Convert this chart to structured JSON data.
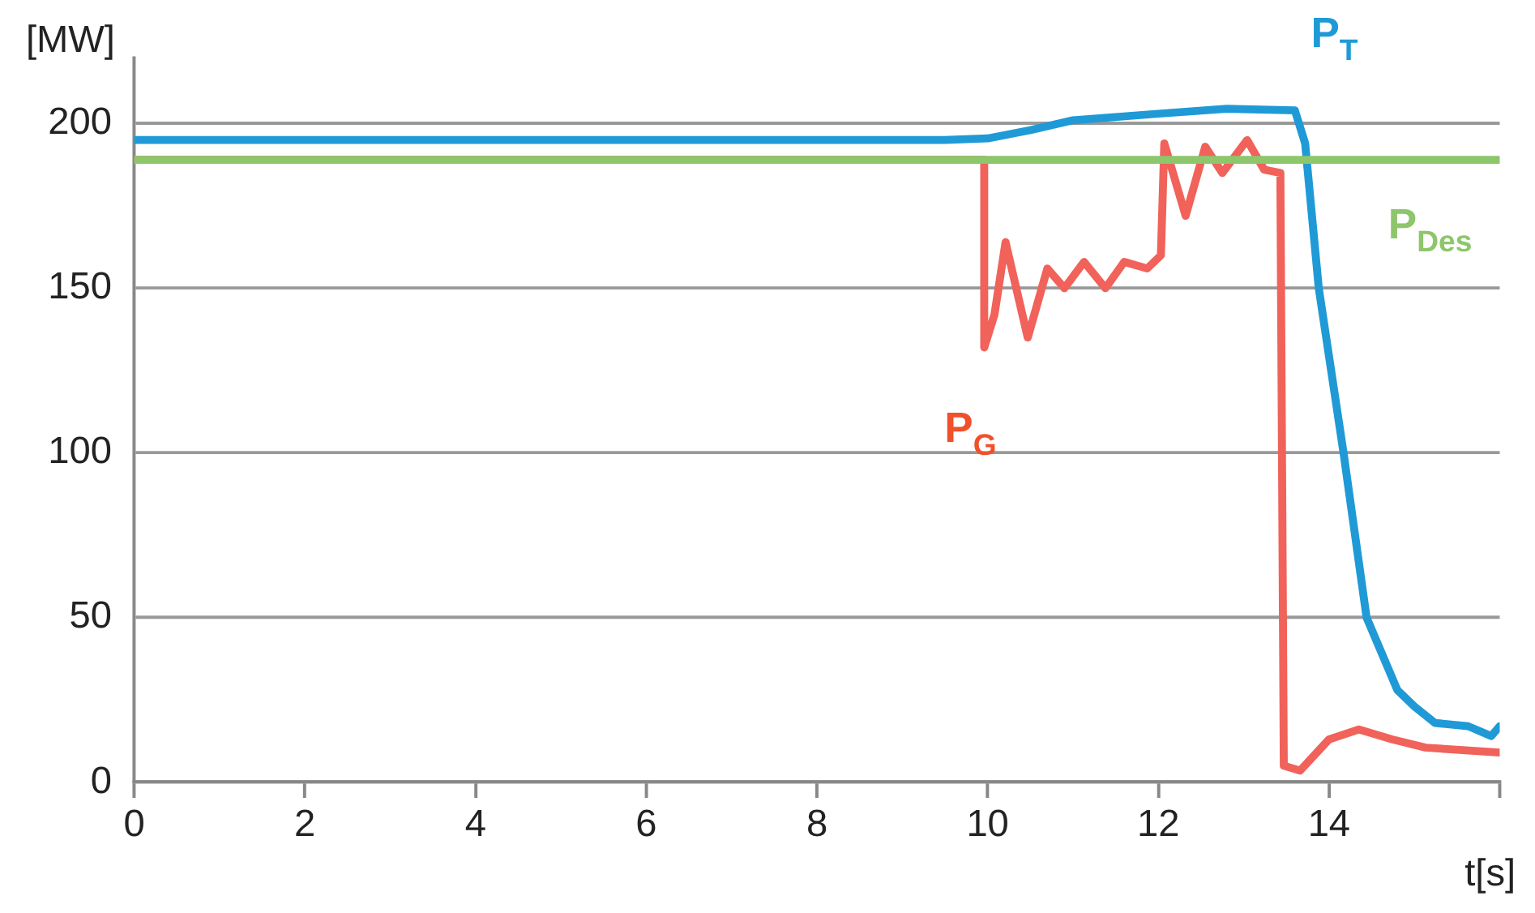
{
  "chart_data": {
    "type": "line",
    "xlabel": "t[s]",
    "ylabel": "[MW]",
    "xlim": [
      0,
      16
    ],
    "xticks": [
      0,
      2,
      4,
      6,
      8,
      10,
      12,
      14,
      {
        "value": 16,
        "label": null
      }
    ],
    "ylim": [
      0,
      220
    ],
    "yticks": [
      0,
      50,
      100,
      150,
      200
    ],
    "grid": "y",
    "legend": false,
    "marker": "none",
    "line_style": "solid",
    "series": [
      {
        "name": "P$_{T}$",
        "color": "#1f9ad6",
        "x": [
          0,
          9.5,
          10,
          10.5,
          11,
          12,
          12.8,
          13.6,
          13.72,
          13.88,
          14.17,
          14.44,
          14.8,
          15.0,
          15.24,
          15.63,
          15.9,
          16
        ],
        "values": [
          195,
          195,
          195.5,
          198,
          201,
          203,
          204.5,
          204,
          194,
          150,
          100,
          50,
          28,
          23,
          18,
          17,
          14,
          17
        ]
      },
      {
        "name": "P$_{G}$",
        "color": "#f0625a",
        "x": [
          0,
          9.96,
          9.96,
          10.08,
          10.21,
          10.47,
          10.7,
          10.9,
          11.13,
          11.38,
          11.6,
          11.87,
          12.03,
          12.07,
          12.32,
          12.55,
          12.75,
          13.04,
          13.24,
          13.43,
          13.47,
          13.66,
          14.0,
          14.35,
          14.74,
          15.13,
          16
        ],
        "values": [
          189,
          189,
          132,
          142,
          164,
          135,
          156,
          150,
          158,
          150,
          158,
          156,
          160,
          194,
          172,
          193,
          185,
          195,
          186,
          185,
          5,
          3.5,
          13,
          16,
          13,
          10.5,
          9
        ]
      },
      {
        "name": "P$_{Des}$",
        "color": "#8dc66b",
        "x": [
          0,
          16
        ],
        "values": [
          189,
          189
        ]
      }
    ]
  }
}
